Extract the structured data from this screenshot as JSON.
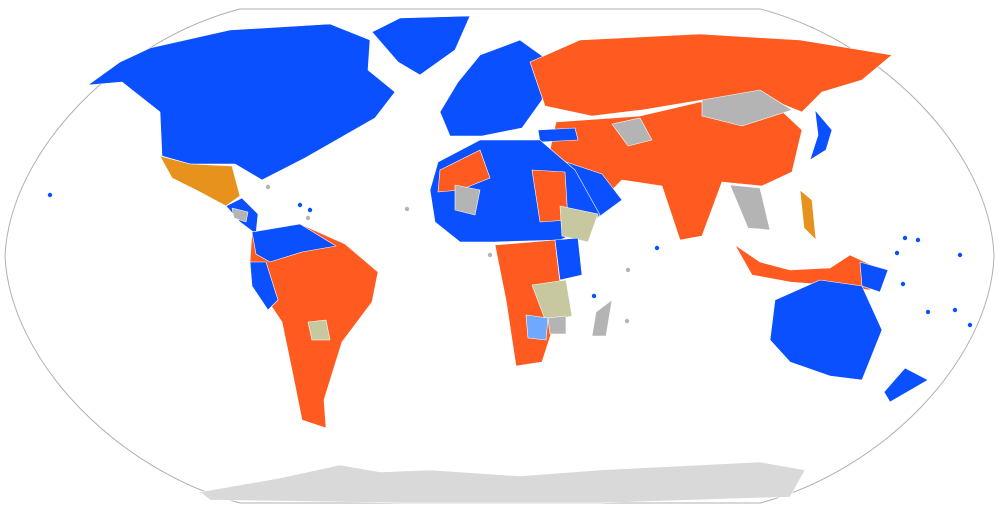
{
  "map": {
    "projection": "robinson",
    "colors": {
      "blue": "#0a50ff",
      "red_orange": "#ff5a1f",
      "orange": "#e8921e",
      "gray": "#b4b4b4",
      "khaki": "#c8c8a0",
      "light_blue": "#6fa8ff",
      "antarctica": "#d9d9d9",
      "ocean": "#ffffff",
      "outline": "#b0b0b0"
    }
  }
}
